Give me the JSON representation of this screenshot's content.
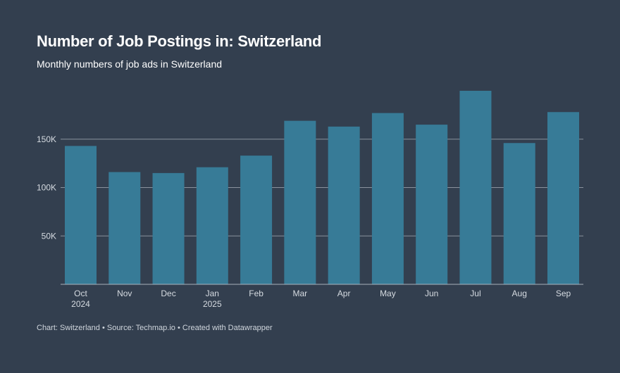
{
  "header": {
    "title": "Number of Job Postings in: Switzerland",
    "subtitle": "Monthly numbers of job ads in Switzerland"
  },
  "footer": {
    "chart_label": "Chart: Switzerland",
    "separator": "•",
    "source": "Source: Techmap.io",
    "created": "Created with Datawrapper"
  },
  "colors": {
    "background": "#333f4f",
    "bar": "#377b97",
    "gridline": "#8a939e",
    "axis": "#aab2bb"
  },
  "chart_data": {
    "type": "bar",
    "title": "Number of Job Postings in: Switzerland",
    "subtitle": "Monthly numbers of job ads in Switzerland",
    "xlabel": "",
    "ylabel": "",
    "categories": [
      "Oct",
      "Nov",
      "Dec",
      "Jan",
      "Feb",
      "Mar",
      "Apr",
      "May",
      "Jun",
      "Jul",
      "Aug",
      "Sep"
    ],
    "category_sublabels": [
      "2024",
      "",
      "",
      "2025",
      "",
      "",
      "",
      "",
      "",
      "",
      "",
      ""
    ],
    "values": [
      143000,
      116000,
      115000,
      121000,
      133000,
      169000,
      163000,
      177000,
      165000,
      200000,
      146000,
      178000
    ],
    "ylim": [
      0,
      200000
    ],
    "yticks": [
      50000,
      100000,
      150000
    ],
    "ytick_labels": [
      "50K",
      "100K",
      "150K"
    ],
    "grid": true
  }
}
